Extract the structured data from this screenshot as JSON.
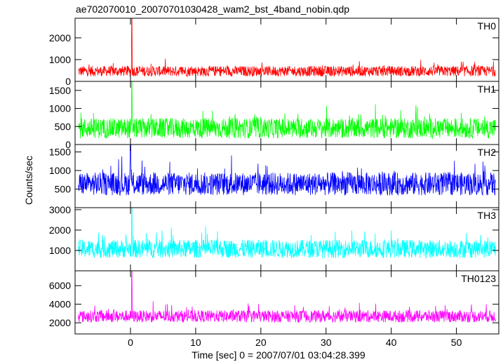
{
  "title": "ae702070010_20070701030428_wam2_bst_4band_nobin.qdp",
  "xlabel": "Time [sec] 0 = 2007/07/01 03:04:28.399",
  "ylabel": "Counts/sec",
  "chart_data": {
    "type": "line",
    "title": "ae702070010_20070701030428_wam2_bst_4band_nobin.qdp",
    "xlabel": "Time [sec] 0 = 2007/07/01 03:04:28.399",
    "ylabel": "Counts/sec",
    "xlim": [
      -8.5,
      56.5
    ],
    "x_ticks": [
      0,
      10,
      20,
      30,
      40,
      50
    ],
    "x_start": -8.0,
    "x_end": 56.0,
    "grid": false,
    "panels": [
      {
        "name": "TH0",
        "color": "#ff0000",
        "ylim": [
          0,
          2900
        ],
        "y_ticks": [
          0,
          1000,
          2000
        ],
        "baseline_mean": 470,
        "noise_amplitude": 480,
        "peak": {
          "x": 0.2,
          "y": 2900
        },
        "x_ticks_labeled": false
      },
      {
        "name": "TH1",
        "color": "#00ff00",
        "ylim": [
          0,
          1750
        ],
        "y_ticks": [
          0,
          500,
          1000,
          1500
        ],
        "baseline_mean": 450,
        "noise_amplitude": 560,
        "peak": {
          "x": 0.2,
          "y": 1750
        },
        "x_ticks_labeled": false
      },
      {
        "name": "TH2",
        "color": "#0000ff",
        "ylim": [
          0,
          1700
        ],
        "y_ticks": [
          500,
          1000,
          1500
        ],
        "baseline_mean": 640,
        "noise_amplitude": 620,
        "peak": {
          "x": 0.0,
          "y": 1700
        },
        "x_ticks_labeled": false
      },
      {
        "name": "TH3",
        "color": "#00ffff",
        "ylim": [
          0,
          3100
        ],
        "y_ticks": [
          1000,
          2000,
          3000
        ],
        "baseline_mean": 1080,
        "noise_amplitude": 900,
        "peak": {
          "x": 0.2,
          "y": 3100
        },
        "x_ticks_labeled": false
      },
      {
        "name": "TH0123",
        "color": "#ff00ff",
        "ylim": [
          800,
          7600
        ],
        "y_ticks": [
          2000,
          4000,
          6000
        ],
        "baseline_mean": 2700,
        "noise_amplitude": 1300,
        "peak": {
          "x": 0.2,
          "y": 7600
        },
        "x_ticks_labeled": true
      }
    ]
  }
}
